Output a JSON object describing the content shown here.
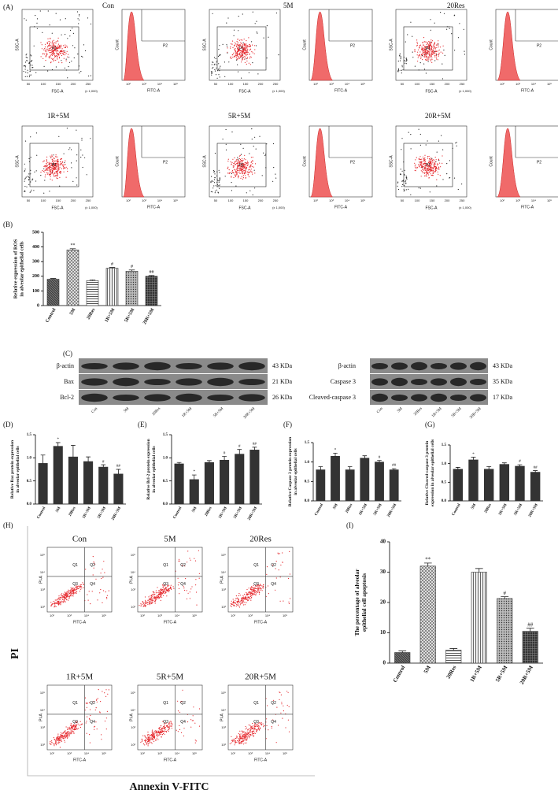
{
  "flow_ros": {
    "panel": "(A)",
    "groups": [
      "Con",
      "5M",
      "20Res",
      "1R+5M",
      "5R+5M",
      "20R+5M"
    ],
    "scatter_y": "SSC-A",
    "scatter_x": "FSC-A",
    "scale": "(x 1,000)",
    "scatter_ticks": [
      "50",
      "100",
      "150",
      "200",
      "250"
    ],
    "gate_scatter": "P1",
    "hist_y": "Count",
    "hist_x": "FITC-A",
    "hist_ticks": [
      "10²",
      "10³",
      "10⁴",
      "10⁵"
    ],
    "gate_hist": "P2"
  },
  "western": {
    "panel": "(C)",
    "left": {
      "proteins": [
        "β-actin",
        "Bax",
        "Bcl-2"
      ],
      "sizes": [
        "43 KDa",
        "21 KDa",
        "26 KDa"
      ],
      "lanes": [
        "Con",
        "5M",
        "20Res",
        "1R+5M",
        "5R+5M",
        "20R+5M"
      ]
    },
    "right": {
      "proteins": [
        "β-actin",
        "Caspase 3",
        "Cleaved-caspase 3"
      ],
      "sizes": [
        "43 KDa",
        "35 KDa",
        "17 KDa"
      ],
      "lanes": [
        "Con",
        "5M",
        "20Res",
        "1R+5M",
        "5R+5M",
        "20R+5M"
      ]
    }
  },
  "flow_apoptosis": {
    "panel": "(H)",
    "groups": [
      "Con",
      "5M",
      "20Res",
      "1R+5M",
      "5R+5M",
      "20R+5M"
    ],
    "quadrants": [
      "Q1",
      "Q2",
      "Q3",
      "Q4"
    ],
    "y_axis": "PI-A",
    "x_axis": "FITC-A",
    "ticks": [
      "10²",
      "10³",
      "10⁴",
      "10⁵"
    ],
    "y_title": "PI",
    "x_title": "Annexin V-FITC"
  },
  "chart_data": [
    {
      "type": "bar",
      "panel": "(B)",
      "y_label": [
        "Relative expression of ROS",
        "in alveolar epithelial cells"
      ],
      "categories": [
        "Control",
        "5M",
        "20Res",
        "1R+5M",
        "5R+5M",
        "20R+5M"
      ],
      "values": [
        180,
        380,
        170,
        255,
        235,
        200
      ],
      "errors": [
        5,
        8,
        5,
        5,
        8,
        5
      ],
      "annotations": [
        null,
        "**",
        null,
        "#",
        "#",
        "##"
      ],
      "ylim": [
        0,
        500
      ],
      "yticks": [
        0,
        100,
        200,
        300,
        400,
        500
      ],
      "color": "#333333",
      "pattern": true
    },
    {
      "type": "bar",
      "panel": "(D)",
      "y_label": [
        "Relative Bax  protein expression",
        "in alveolar epithelial cells"
      ],
      "categories": [
        "Control",
        "5M",
        "20Res",
        "1R+5M",
        "5R+5M",
        "20R+5M"
      ],
      "values": [
        0.88,
        1.25,
        1.02,
        0.92,
        0.8,
        0.65
      ],
      "errors": [
        0.18,
        0.08,
        0.25,
        0.1,
        0.05,
        0.1
      ],
      "annotations": [
        null,
        "*",
        null,
        null,
        "#",
        "##"
      ],
      "ylim": [
        0,
        1.5
      ],
      "yticks": [
        {
          "value": 0,
          "label": "0.0"
        },
        0.5,
        {
          "value": 1,
          "label": "1.0"
        },
        1.5
      ],
      "color": "#333333",
      "pattern": false
    },
    {
      "type": "bar",
      "panel": "(E)",
      "y_label": [
        "Relative Bcl-2 protein expression",
        "in alveolar epithelial cells"
      ],
      "categories": [
        "Control",
        "5M",
        "20Res",
        "1R+5M",
        "5R+5M",
        "20R+5M"
      ],
      "values": [
        0.87,
        0.53,
        0.9,
        0.95,
        1.08,
        1.17
      ],
      "errors": [
        0.03,
        0.1,
        0.04,
        0.08,
        0.1,
        0.06
      ],
      "annotations": [
        null,
        "*",
        null,
        "#",
        "#",
        "##"
      ],
      "ylim": [
        0,
        1.5
      ],
      "yticks": [
        {
          "value": 0,
          "label": "0.0"
        },
        0.5,
        {
          "value": 1,
          "label": "1.0"
        },
        1.5
      ],
      "color": "#333333",
      "pattern": false
    },
    {
      "type": "bar",
      "panel": "(F)",
      "y_label": [
        "Relative Caspase 3 protein expression",
        "in alveolar epithelial cells"
      ],
      "categories": [
        "Control",
        "5M",
        "20Res",
        "1R+5M",
        "5R+5M",
        "20R+5M"
      ],
      "values": [
        0.8,
        1.15,
        0.8,
        1.1,
        1.0,
        0.8
      ],
      "errors": [
        0.08,
        0.08,
        0.08,
        0.06,
        0.04,
        0.03
      ],
      "annotations": [
        null,
        "*",
        null,
        null,
        "#",
        "##"
      ],
      "ylim": [
        0,
        1.5
      ],
      "yticks": [
        {
          "value": 0,
          "label": "0.0"
        },
        0.5,
        {
          "value": 1,
          "label": "1.0"
        },
        1.5
      ],
      "color": "#333333",
      "pattern": false
    },
    {
      "type": "bar",
      "panel": "(G)",
      "y_label": [
        "Relative Cleaved-caspase 3 protein",
        "expression in alveolar epithelial cells"
      ],
      "categories": [
        "Control",
        "5M",
        "20Res",
        "1R+5M",
        "5R+5M",
        "20R+5M"
      ],
      "values": [
        0.85,
        1.1,
        0.85,
        0.98,
        0.93,
        0.77
      ],
      "errors": [
        0.05,
        0.07,
        0.07,
        0.04,
        0.04,
        0.04
      ],
      "annotations": [
        null,
        "*",
        null,
        null,
        "#",
        "##"
      ],
      "ylim": [
        0,
        1.5
      ],
      "yticks": [
        {
          "value": 0,
          "label": "0.0"
        },
        0.5,
        {
          "value": 1,
          "label": "1.0"
        },
        1.5
      ],
      "color": "#333333",
      "pattern": false
    },
    {
      "type": "bar",
      "panel": "(I)",
      "y_label": [
        "The percentage of alveolar",
        "epithelial cell apoptosis"
      ],
      "categories": [
        "Control",
        "5M",
        "20Res",
        "1R+5M",
        "5R+5M",
        "20R+5M"
      ],
      "values": [
        3.5,
        32,
        4.3,
        30,
        21.3,
        10.5
      ],
      "errors": [
        0.5,
        1,
        0.5,
        1.2,
        0.6,
        1
      ],
      "annotations": [
        null,
        "**",
        null,
        null,
        "#",
        "##"
      ],
      "ylim": [
        0,
        40
      ],
      "yticks": [
        0,
        10,
        20,
        30,
        40
      ],
      "color": "#333333",
      "pattern": true
    }
  ]
}
